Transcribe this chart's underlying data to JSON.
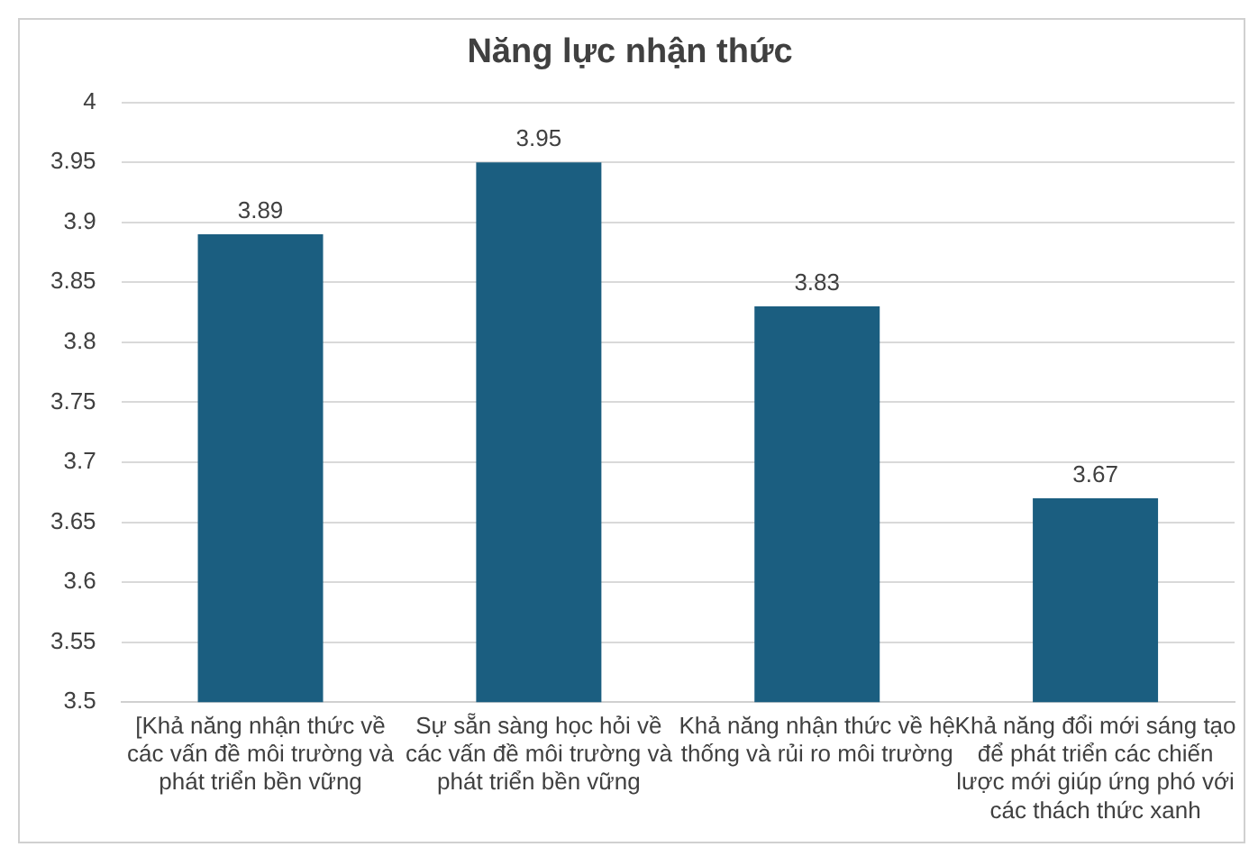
{
  "chart_data": {
    "type": "bar",
    "title": "Năng lực nhận thức",
    "categories": [
      "[Khả năng nhận thức về các vấn đề môi trường và phát triển bền vững",
      "Sự sẵn sàng học hỏi về các vấn đề môi trường và phát triển bền vững",
      "Khả năng nhận thức về hệ thống và rủi ro môi trường",
      "Khả năng đổi mới sáng tạo để phát triển các chiến lược mới giúp ứng phó với các thách thức xanh"
    ],
    "values": [
      3.89,
      3.95,
      3.83,
      3.67
    ],
    "color": "#1b5e80",
    "ylim": [
      3.5,
      4
    ],
    "yticks": [
      3.5,
      3.55,
      3.6,
      3.65,
      3.7,
      3.75,
      3.8,
      3.85,
      3.9,
      3.95,
      4
    ],
    "grid": "y",
    "legend": false,
    "data_labels": true
  }
}
